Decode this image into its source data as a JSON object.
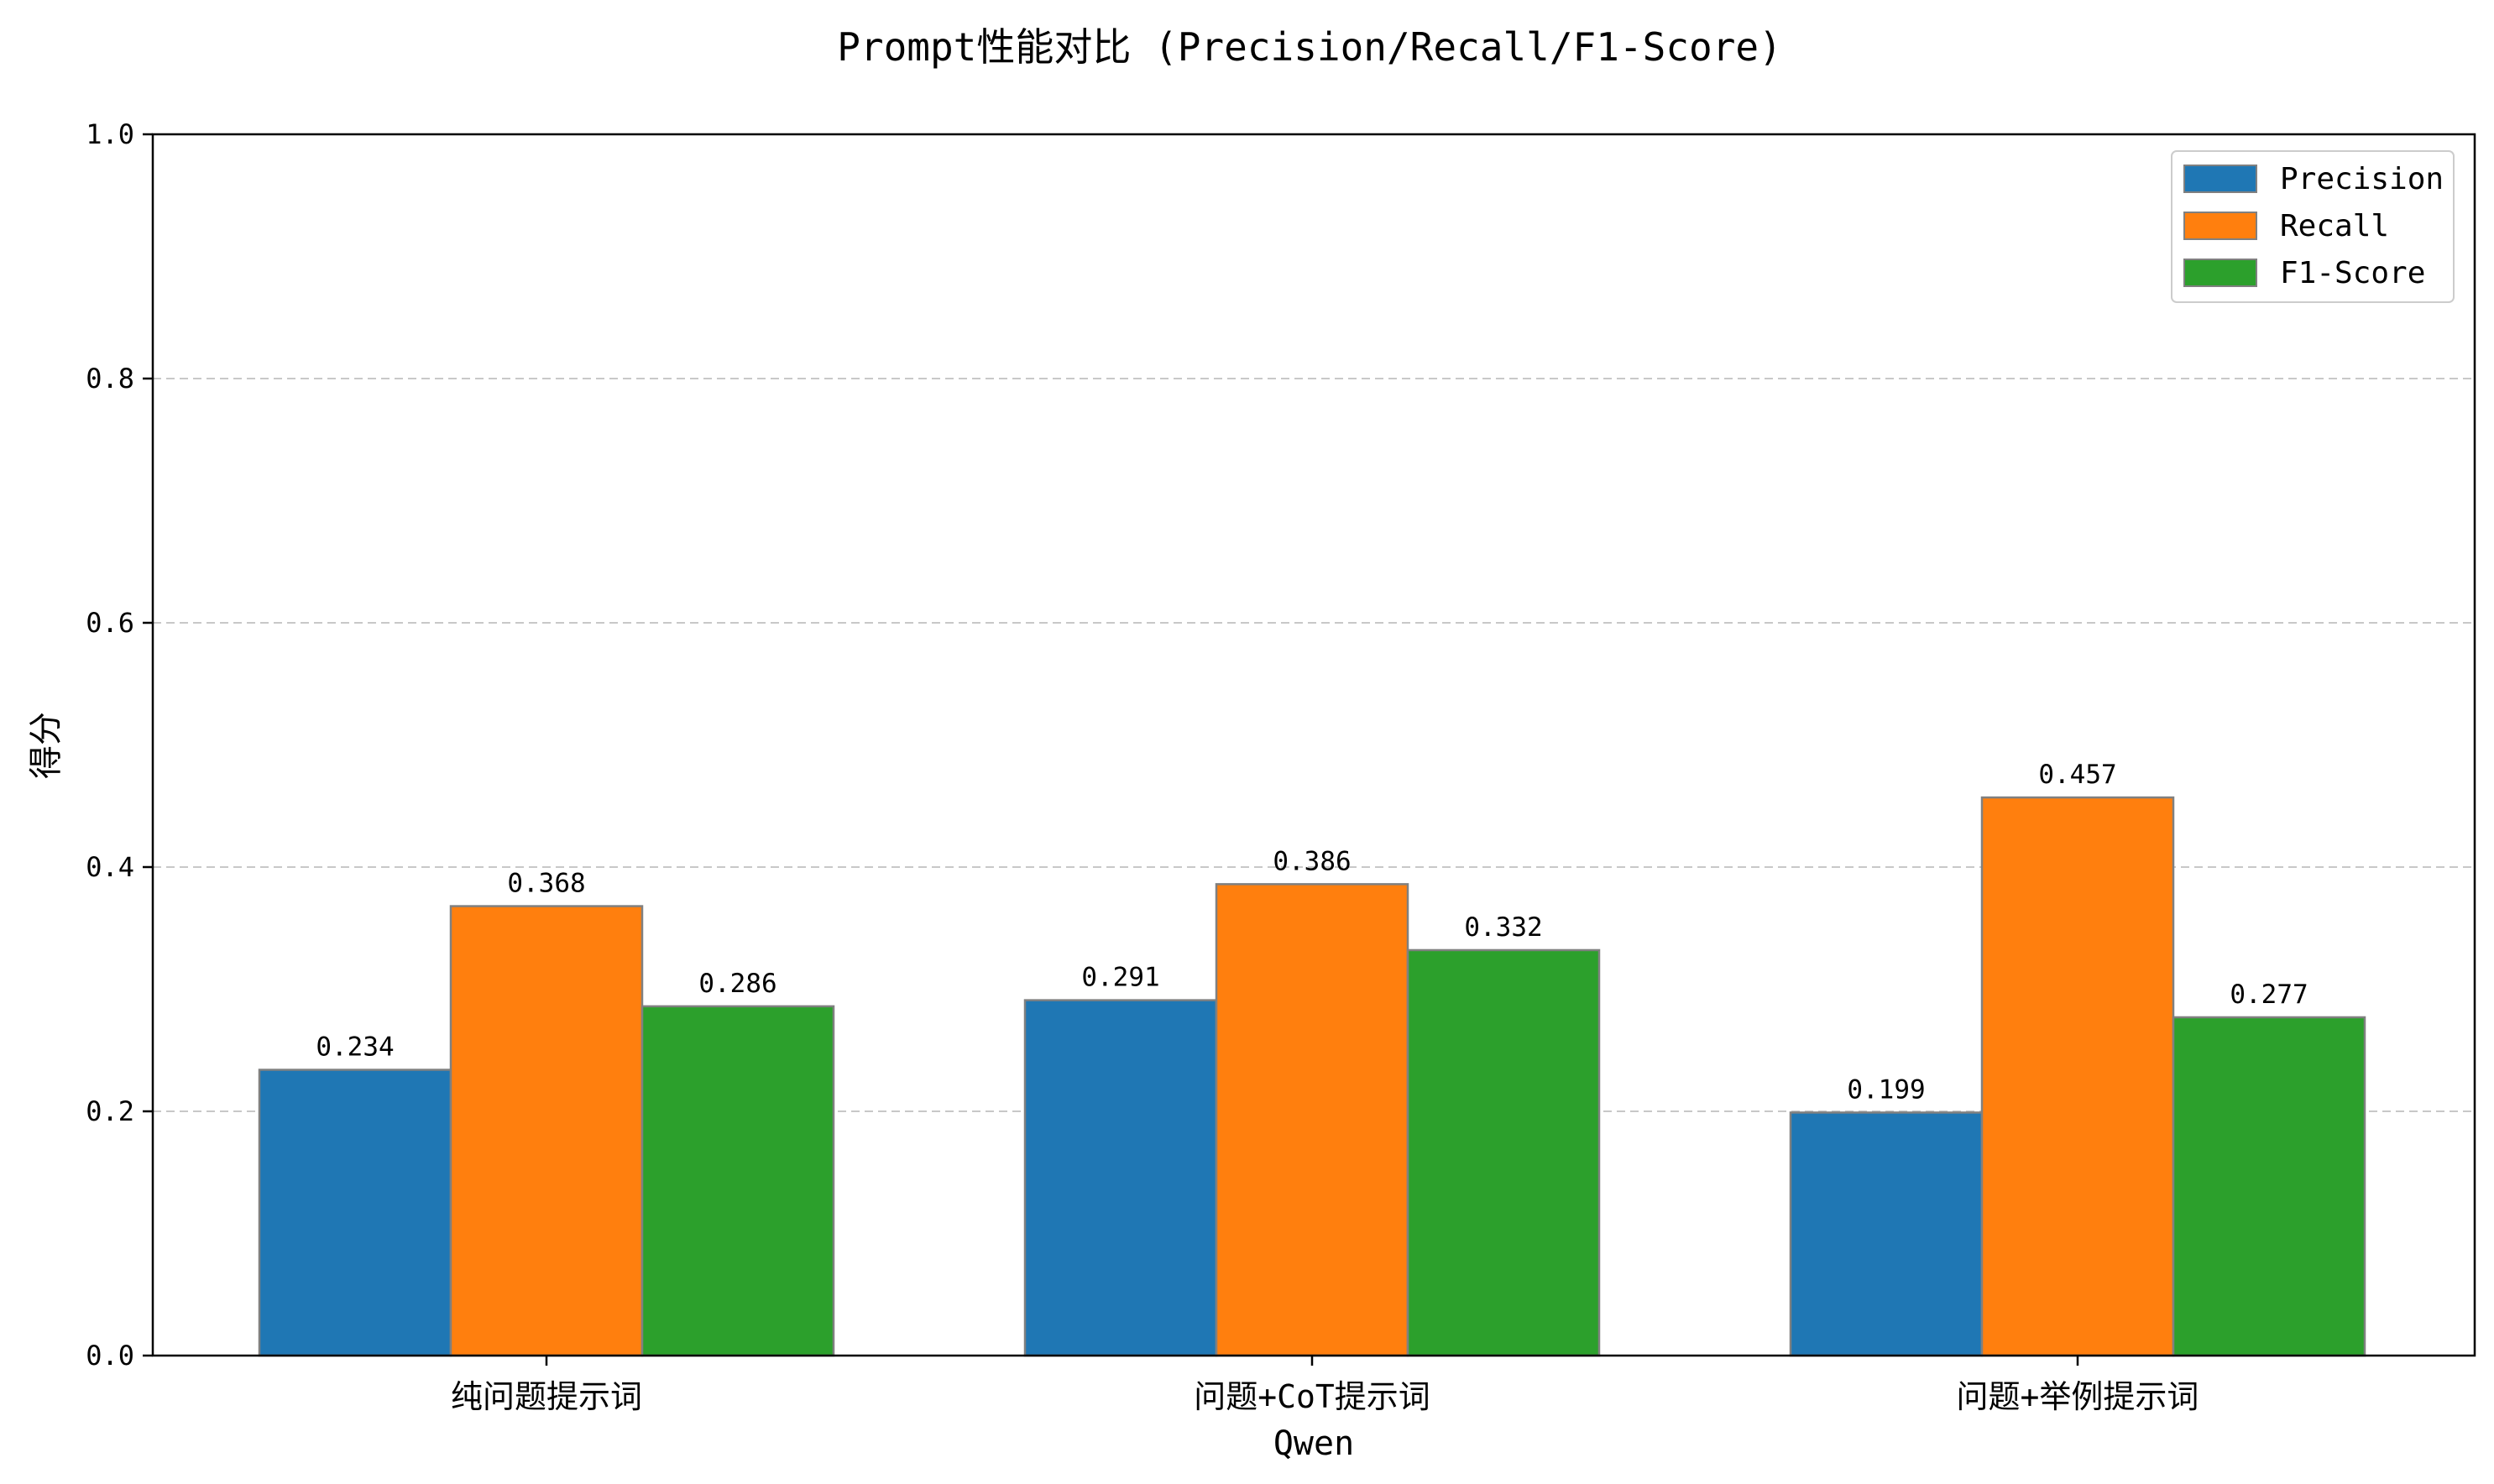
{
  "chart_data": {
    "type": "bar",
    "title": "Prompt性能对比 (Precision/Recall/F1-Score)",
    "xlabel": "Qwen",
    "ylabel": "得分",
    "categories": [
      "纯问题提示词",
      "问题+CoT提示词",
      "问题+举例提示词"
    ],
    "series": [
      {
        "name": "Precision",
        "values": [
          0.234,
          0.291,
          0.199
        ],
        "color": "#1f77b4"
      },
      {
        "name": "Recall",
        "values": [
          0.368,
          0.386,
          0.457
        ],
        "color": "#ff7f0e"
      },
      {
        "name": "F1-Score",
        "values": [
          0.286,
          0.332,
          0.277
        ],
        "color": "#2ca02c"
      }
    ],
    "data_labels": [
      [
        "0.234",
        "0.368",
        "0.286"
      ],
      [
        "0.291",
        "0.386",
        "0.332"
      ],
      [
        "0.199",
        "0.457",
        "0.277"
      ]
    ],
    "ylim": [
      0,
      1.0
    ],
    "yticks": [
      "0.0",
      "0.2",
      "0.4",
      "0.6",
      "0.8",
      "1.0"
    ],
    "grid": "horizontal-dashed",
    "legend_position": "top-right",
    "bar_edge_color": "#808080"
  }
}
